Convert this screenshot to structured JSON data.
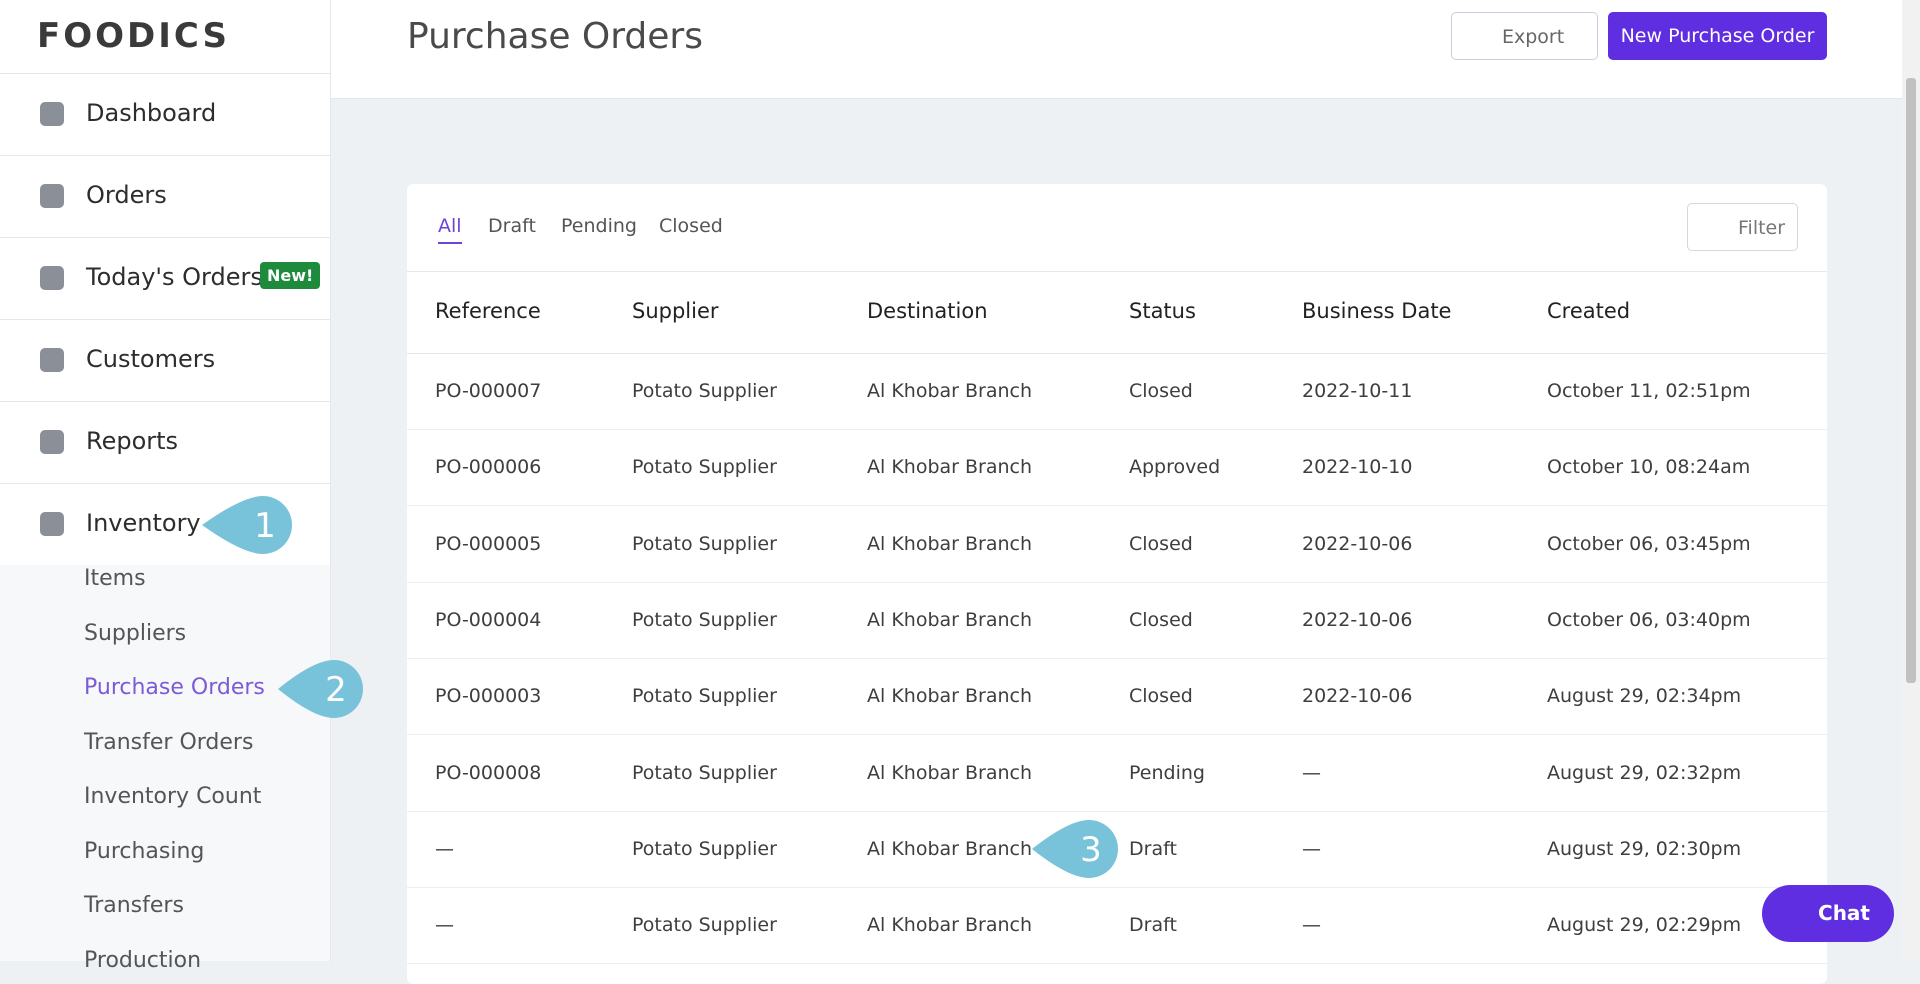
{
  "logo": "FOODICS",
  "sidebar": {
    "nav": [
      {
        "label": "Dashboard"
      },
      {
        "label": "Orders"
      },
      {
        "label": "Today's Orders",
        "badge": "New!"
      },
      {
        "label": "Customers"
      },
      {
        "label": "Reports"
      },
      {
        "label": "Inventory"
      }
    ],
    "submenu": [
      {
        "label": "Items"
      },
      {
        "label": "Suppliers"
      },
      {
        "label": "Purchase Orders",
        "active": true
      },
      {
        "label": "Transfer Orders"
      },
      {
        "label": "Inventory Count"
      },
      {
        "label": "Purchasing"
      },
      {
        "label": "Transfers"
      },
      {
        "label": "Production"
      }
    ]
  },
  "header": {
    "title": "Purchase Orders",
    "export": "Export",
    "new_button": "New Purchase Order"
  },
  "tabs": [
    {
      "label": "All",
      "active": true
    },
    {
      "label": "Draft"
    },
    {
      "label": "Pending"
    },
    {
      "label": "Closed"
    }
  ],
  "filter": "Filter",
  "table": {
    "columns": [
      "Reference",
      "Supplier",
      "Destination",
      "Status",
      "Business Date",
      "Created"
    ],
    "rows": [
      [
        "PO-000007",
        "Potato Supplier",
        "Al Khobar Branch",
        "Closed",
        "2022-10-11",
        "October 11, 02:51pm"
      ],
      [
        "PO-000006",
        "Potato Supplier",
        "Al Khobar Branch",
        "Approved",
        "2022-10-10",
        "October 10, 08:24am"
      ],
      [
        "PO-000005",
        "Potato Supplier",
        "Al Khobar Branch",
        "Closed",
        "2022-10-06",
        "October 06, 03:45pm"
      ],
      [
        "PO-000004",
        "Potato Supplier",
        "Al Khobar Branch",
        "Closed",
        "2022-10-06",
        "October 06, 03:40pm"
      ],
      [
        "PO-000003",
        "Potato Supplier",
        "Al Khobar Branch",
        "Closed",
        "2022-10-06",
        "August 29, 02:34pm"
      ],
      [
        "PO-000008",
        "Potato Supplier",
        "Al Khobar Branch",
        "Pending",
        "—",
        "August 29, 02:32pm"
      ],
      [
        "—",
        "Potato Supplier",
        "Al Khobar Branch",
        "Draft",
        "—",
        "August 29, 02:30pm"
      ],
      [
        "—",
        "Potato Supplier",
        "Al Khobar Branch",
        "Draft",
        "—",
        "August 29, 02:29pm"
      ]
    ]
  },
  "callouts": [
    "1",
    "2",
    "3"
  ],
  "chat": "Chat"
}
